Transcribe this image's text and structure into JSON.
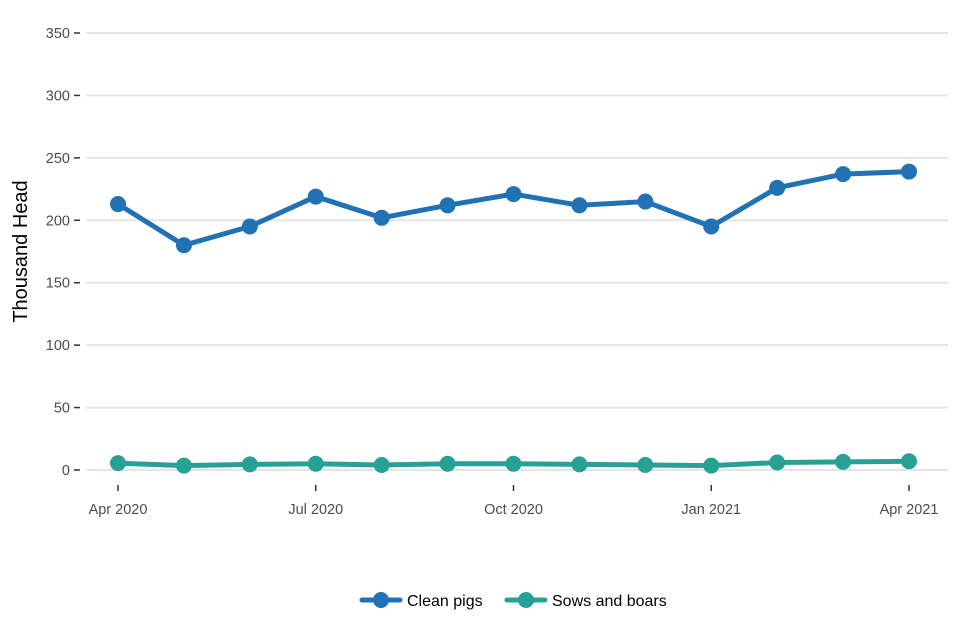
{
  "chart_data": {
    "type": "line",
    "ylabel": "Thousand Head",
    "xlabel": "",
    "ylim": [
      0,
      350
    ],
    "y_ticks": [
      0,
      50,
      100,
      150,
      200,
      250,
      300,
      350
    ],
    "x": [
      "2020-04",
      "2020-05",
      "2020-06",
      "2020-07",
      "2020-08",
      "2020-09",
      "2020-10",
      "2020-11",
      "2020-12",
      "2021-01",
      "2021-02",
      "2021-03",
      "2021-04"
    ],
    "x_ticks": [
      {
        "x": "2020-04",
        "label": "Apr 2020"
      },
      {
        "x": "2020-07",
        "label": "Jul 2020"
      },
      {
        "x": "2020-10",
        "label": "Oct 2020"
      },
      {
        "x": "2021-01",
        "label": "Jan 2021"
      },
      {
        "x": "2021-04",
        "label": "Apr 2021"
      }
    ],
    "series": [
      {
        "name": "Clean pigs",
        "color": "#2171b5",
        "values": [
          213,
          180,
          195,
          219,
          202,
          212,
          221,
          212,
          215,
          195,
          226,
          237,
          239
        ]
      },
      {
        "name": "Sows and boars",
        "color": "#27a196",
        "values": [
          5.5,
          3.5,
          4.5,
          5,
          4,
          5,
          5,
          4.5,
          4,
          3.5,
          6,
          6.5,
          7
        ]
      }
    ],
    "grid": true,
    "legend_position": "bottom"
  }
}
